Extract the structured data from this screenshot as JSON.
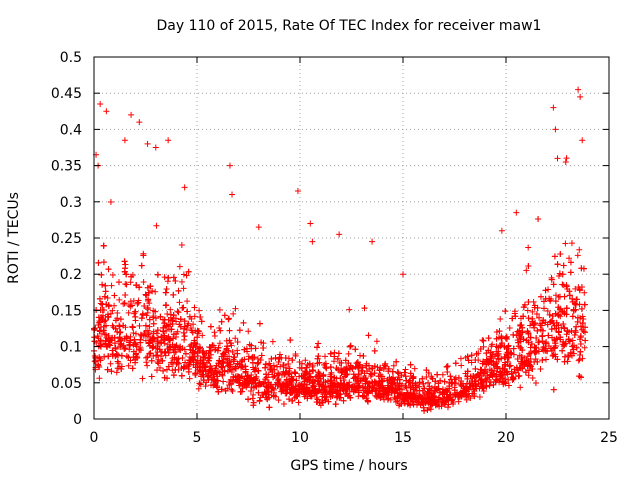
{
  "chart_data": {
    "type": "scatter",
    "title": "Day 110 of 2015, Rate Of TEC Index for receiver maw1",
    "xlabel": "GPS time / hours",
    "ylabel": "ROTI / TECUs",
    "xlim": [
      0,
      25
    ],
    "ylim": [
      0,
      0.5
    ],
    "xticks": [
      "0",
      "5",
      "10",
      "15",
      "20",
      "25"
    ],
    "yticks": [
      "0",
      "0.05",
      "0.1",
      "0.15",
      "0.2",
      "0.25",
      "0.3",
      "0.35",
      "0.4",
      "0.45",
      "0.5"
    ],
    "grid": true,
    "marker": "+",
    "color": "#ff0000",
    "series": [
      {
        "x": [
          0.1,
          0.2,
          0.3,
          0.6,
          1.5,
          1.8,
          2.2,
          2.6,
          3.0,
          3.6,
          4.4,
          6.6,
          6.7,
          8.0,
          9.9,
          10.5,
          10.6,
          11.9,
          13.5,
          15.0,
          19.8,
          20.5,
          22.3,
          22.4,
          22.5,
          22.9,
          23.5,
          23.6,
          23.7
        ],
        "y": [
          0.365,
          0.35,
          0.435,
          0.425,
          0.385,
          0.42,
          0.41,
          0.38,
          0.375,
          0.385,
          0.32,
          0.35,
          0.31,
          0.265,
          0.315,
          0.27,
          0.245,
          0.255,
          0.245,
          0.2,
          0.26,
          0.285,
          0.43,
          0.4,
          0.36,
          0.355,
          0.455,
          0.445,
          0.385
        ]
      }
    ],
    "density_profile": {
      "hours": [
        0,
        0.5,
        1,
        1.5,
        2,
        2.5,
        3,
        3.5,
        4,
        4.5,
        5,
        5.5,
        6,
        6.5,
        7,
        7.5,
        8,
        8.5,
        9,
        9.5,
        10,
        10.5,
        11,
        11.5,
        12,
        12.5,
        13,
        13.5,
        14,
        14.5,
        15,
        15.5,
        16,
        16.5,
        17,
        17.5,
        18,
        18.5,
        19,
        19.5,
        20,
        20.5,
        21,
        21.5,
        22,
        22.5,
        23,
        23.5,
        23.8
      ],
      "center": [
        0.09,
        0.12,
        0.11,
        0.12,
        0.11,
        0.12,
        0.11,
        0.11,
        0.1,
        0.1,
        0.08,
        0.07,
        0.07,
        0.08,
        0.06,
        0.06,
        0.05,
        0.05,
        0.05,
        0.05,
        0.045,
        0.045,
        0.045,
        0.045,
        0.045,
        0.05,
        0.045,
        0.05,
        0.04,
        0.04,
        0.035,
        0.035,
        0.03,
        0.03,
        0.03,
        0.035,
        0.04,
        0.05,
        0.06,
        0.07,
        0.07,
        0.08,
        0.09,
        0.11,
        0.12,
        0.13,
        0.13,
        0.12,
        0.11
      ],
      "spread": [
        0.06,
        0.08,
        0.08,
        0.08,
        0.08,
        0.08,
        0.08,
        0.08,
        0.07,
        0.07,
        0.06,
        0.05,
        0.05,
        0.06,
        0.05,
        0.05,
        0.045,
        0.04,
        0.04,
        0.04,
        0.035,
        0.035,
        0.035,
        0.035,
        0.035,
        0.04,
        0.035,
        0.04,
        0.03,
        0.03,
        0.03,
        0.03,
        0.025,
        0.025,
        0.025,
        0.03,
        0.03,
        0.04,
        0.045,
        0.05,
        0.05,
        0.06,
        0.065,
        0.08,
        0.09,
        0.1,
        0.1,
        0.09,
        0.08
      ]
    }
  }
}
